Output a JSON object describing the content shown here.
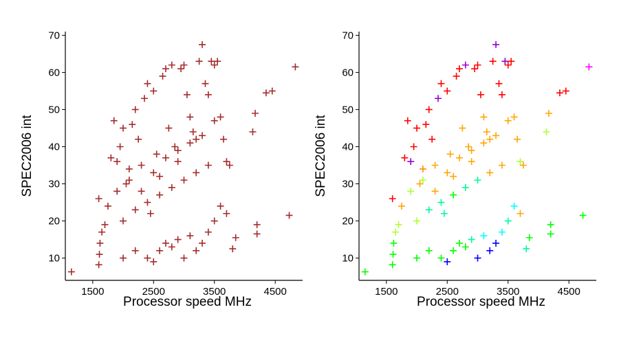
{
  "figure": {
    "panels": [
      {
        "id": "left",
        "xlabel": "Processor speed MHz",
        "ylabel": "SPEC2006 int",
        "colored": false
      },
      {
        "id": "right",
        "xlabel": "Processor speed MHz",
        "ylabel": "SPEC2006 int",
        "colored": true
      }
    ]
  },
  "chart_data": [
    {
      "type": "scatter",
      "marker": "plus",
      "xlabel": "Processor speed MHz",
      "ylabel": "SPEC2006 int",
      "xlim": [
        1050,
        4950
      ],
      "ylim": [
        4,
        71
      ],
      "xticks": [
        1500,
        2500,
        3500,
        4500
      ],
      "yticks": [
        10,
        20,
        30,
        40,
        50,
        60,
        70
      ],
      "grid": false,
      "legend": "none",
      "color": "#a52a2a",
      "description": "Single series; dense overlapping cloud of several hundred points between about 1600-3800 MHz and 8-64 SPEC2006 int, plus isolated points listed below.",
      "points": [
        [
          1150,
          6.3
        ],
        [
          1600,
          8.2
        ],
        [
          1610,
          11
        ],
        [
          1620,
          14
        ],
        [
          1650,
          17
        ],
        [
          1600,
          26
        ],
        [
          1700,
          19
        ],
        [
          1750,
          24
        ],
        [
          1800,
          37
        ],
        [
          1850,
          47
        ],
        [
          1900,
          36
        ],
        [
          1950,
          40
        ],
        [
          2000,
          45
        ],
        [
          2050,
          30
        ],
        [
          2100,
          34
        ],
        [
          2150,
          46
        ],
        [
          2200,
          50
        ],
        [
          2250,
          42
        ],
        [
          2300,
          28
        ],
        [
          2350,
          53
        ],
        [
          2400,
          57
        ],
        [
          2450,
          22
        ],
        [
          2500,
          55
        ],
        [
          2550,
          38
        ],
        [
          2600,
          32
        ],
        [
          2650,
          59
        ],
        [
          2700,
          61
        ],
        [
          2750,
          45
        ],
        [
          2800,
          62
        ],
        [
          2850,
          40
        ],
        [
          2900,
          36
        ],
        [
          2950,
          61
        ],
        [
          3000,
          62
        ],
        [
          3050,
          54
        ],
        [
          3100,
          48
        ],
        [
          3150,
          44
        ],
        [
          3200,
          42
        ],
        [
          3250,
          63
        ],
        [
          3300,
          67.5
        ],
        [
          3350,
          57
        ],
        [
          3400,
          54
        ],
        [
          3450,
          63
        ],
        [
          3500,
          62
        ],
        [
          3550,
          63
        ],
        [
          3600,
          48
        ],
        [
          3650,
          42
        ],
        [
          3700,
          36
        ],
        [
          3750,
          35
        ],
        [
          3800,
          12.5
        ],
        [
          3850,
          15.5
        ],
        [
          2000,
          10
        ],
        [
          2200,
          12
        ],
        [
          2400,
          10
        ],
        [
          2500,
          9
        ],
        [
          2600,
          12
        ],
        [
          2700,
          14
        ],
        [
          2800,
          13
        ],
        [
          2900,
          15
        ],
        [
          3000,
          10
        ],
        [
          3100,
          16
        ],
        [
          3200,
          12
        ],
        [
          3300,
          14
        ],
        [
          3400,
          17
        ],
        [
          3500,
          20
        ],
        [
          3600,
          24
        ],
        [
          3700,
          22
        ],
        [
          2000,
          20
        ],
        [
          2200,
          23
        ],
        [
          2400,
          25
        ],
        [
          2600,
          27
        ],
        [
          2800,
          29
        ],
        [
          3000,
          31
        ],
        [
          3200,
          33
        ],
        [
          3400,
          35
        ],
        [
          1900,
          28
        ],
        [
          2100,
          31
        ],
        [
          2300,
          35
        ],
        [
          2500,
          33
        ],
        [
          2700,
          37
        ],
        [
          2900,
          39
        ],
        [
          3100,
          41
        ],
        [
          3300,
          43
        ],
        [
          3500,
          47
        ],
        [
          4130,
          44
        ],
        [
          4170,
          49
        ],
        [
          4200,
          16.5
        ],
        [
          4200,
          19
        ],
        [
          4350,
          54.5
        ],
        [
          4450,
          55
        ],
        [
          4730,
          21.5
        ],
        [
          4830,
          61.5
        ]
      ]
    },
    {
      "type": "scatter",
      "marker": "plus",
      "xlabel": "Processor speed MHz",
      "ylabel": "SPEC2006 int",
      "xlim": [
        1050,
        4950
      ],
      "ylim": [
        4,
        71
      ],
      "xticks": [
        1500,
        2500,
        3500,
        4500
      ],
      "yticks": [
        10,
        20,
        30,
        40,
        50,
        60,
        70
      ],
      "grid": false,
      "legend": "none",
      "colors": [
        "#ff0000",
        "#ff8c00",
        "#ffa500",
        "#adff2f",
        "#00ff00",
        "#00fa9a",
        "#00ffff",
        "#0000ff",
        "#9400d3",
        "#ff00ff"
      ],
      "description": "Same points as the left panel, colored by an unlabeled grouping (rainbow palette).",
      "points": [
        [
          1150,
          6.3,
          "#00ff00"
        ],
        [
          1600,
          8.2,
          "#00ff00"
        ],
        [
          1610,
          11,
          "#00ff00"
        ],
        [
          1620,
          14,
          "#00ff00"
        ],
        [
          1650,
          17,
          "#adff2f"
        ],
        [
          1600,
          26,
          "#ff0000"
        ],
        [
          1700,
          19,
          "#adff2f"
        ],
        [
          1750,
          24,
          "#ffa500"
        ],
        [
          1800,
          37,
          "#ff0000"
        ],
        [
          1850,
          47,
          "#ff0000"
        ],
        [
          1900,
          36,
          "#9400d3"
        ],
        [
          1950,
          40,
          "#ff0000"
        ],
        [
          2000,
          45,
          "#ff0000"
        ],
        [
          2050,
          30,
          "#ffa500"
        ],
        [
          2100,
          34,
          "#ff8c00"
        ],
        [
          2150,
          46,
          "#ff0000"
        ],
        [
          2200,
          50,
          "#ff0000"
        ],
        [
          2250,
          42,
          "#ff0000"
        ],
        [
          2300,
          28,
          "#ffa500"
        ],
        [
          2350,
          53,
          "#9400d3"
        ],
        [
          2400,
          57,
          "#ff0000"
        ],
        [
          2450,
          22,
          "#00fa9a"
        ],
        [
          2500,
          55,
          "#ff0000"
        ],
        [
          2550,
          38,
          "#ffa500"
        ],
        [
          2600,
          32,
          "#ffa500"
        ],
        [
          2650,
          59,
          "#ff0000"
        ],
        [
          2700,
          61,
          "#ff0000"
        ],
        [
          2750,
          45,
          "#ffa500"
        ],
        [
          2800,
          62,
          "#9400d3"
        ],
        [
          2850,
          40,
          "#ffa500"
        ],
        [
          2900,
          36,
          "#ffa500"
        ],
        [
          2950,
          61,
          "#ff0000"
        ],
        [
          3000,
          62,
          "#ff0000"
        ],
        [
          3050,
          54,
          "#ff0000"
        ],
        [
          3100,
          48,
          "#ffa500"
        ],
        [
          3150,
          44,
          "#ffa500"
        ],
        [
          3200,
          42,
          "#ffa500"
        ],
        [
          3250,
          63,
          "#ff0000"
        ],
        [
          3300,
          67.5,
          "#9400d3"
        ],
        [
          3350,
          57,
          "#ff0000"
        ],
        [
          3400,
          54,
          "#ff0000"
        ],
        [
          3450,
          63,
          "#9400d3"
        ],
        [
          3500,
          62,
          "#ff0000"
        ],
        [
          3550,
          63,
          "#ff0000"
        ],
        [
          3600,
          48,
          "#ffa500"
        ],
        [
          3650,
          42,
          "#ffa500"
        ],
        [
          3700,
          36,
          "#adff2f"
        ],
        [
          3750,
          35,
          "#ffa500"
        ],
        [
          3800,
          12.5,
          "#00fa9a"
        ],
        [
          3850,
          15.5,
          "#00ff00"
        ],
        [
          2000,
          10,
          "#00ff00"
        ],
        [
          2200,
          12,
          "#00ff00"
        ],
        [
          2400,
          10,
          "#00ff00"
        ],
        [
          2500,
          9,
          "#0000ff"
        ],
        [
          2600,
          12,
          "#00ff00"
        ],
        [
          2700,
          14,
          "#00ff00"
        ],
        [
          2800,
          13,
          "#00ff00"
        ],
        [
          2900,
          15,
          "#00fa9a"
        ],
        [
          3000,
          10,
          "#0000ff"
        ],
        [
          3100,
          16,
          "#00ffff"
        ],
        [
          3200,
          12,
          "#0000ff"
        ],
        [
          3300,
          14,
          "#0000ff"
        ],
        [
          3400,
          17,
          "#00ffff"
        ],
        [
          3500,
          20,
          "#00fa9a"
        ],
        [
          3600,
          24,
          "#00ffff"
        ],
        [
          3700,
          22,
          "#ffa500"
        ],
        [
          2000,
          20,
          "#adff2f"
        ],
        [
          2200,
          23,
          "#00fa9a"
        ],
        [
          2400,
          25,
          "#00fa9a"
        ],
        [
          2600,
          27,
          "#00ff00"
        ],
        [
          2800,
          29,
          "#00fa9a"
        ],
        [
          3000,
          31,
          "#00fa9a"
        ],
        [
          3200,
          33,
          "#ffa500"
        ],
        [
          3400,
          35,
          "#ffa500"
        ],
        [
          1900,
          28,
          "#adff2f"
        ],
        [
          2100,
          31,
          "#adff2f"
        ],
        [
          2300,
          35,
          "#ffa500"
        ],
        [
          2500,
          33,
          "#ffa500"
        ],
        [
          2700,
          37,
          "#ffa500"
        ],
        [
          2900,
          39,
          "#ffa500"
        ],
        [
          3100,
          41,
          "#ffa500"
        ],
        [
          3300,
          43,
          "#ffa500"
        ],
        [
          3500,
          47,
          "#ffa500"
        ],
        [
          4130,
          44,
          "#adff2f"
        ],
        [
          4170,
          49,
          "#ffa500"
        ],
        [
          4200,
          16.5,
          "#00ff00"
        ],
        [
          4200,
          19,
          "#00ff00"
        ],
        [
          4350,
          54.5,
          "#ff0000"
        ],
        [
          4450,
          55,
          "#ff0000"
        ],
        [
          4730,
          21.5,
          "#00ff00"
        ],
        [
          4830,
          61.5,
          "#ff00ff"
        ]
      ]
    }
  ]
}
